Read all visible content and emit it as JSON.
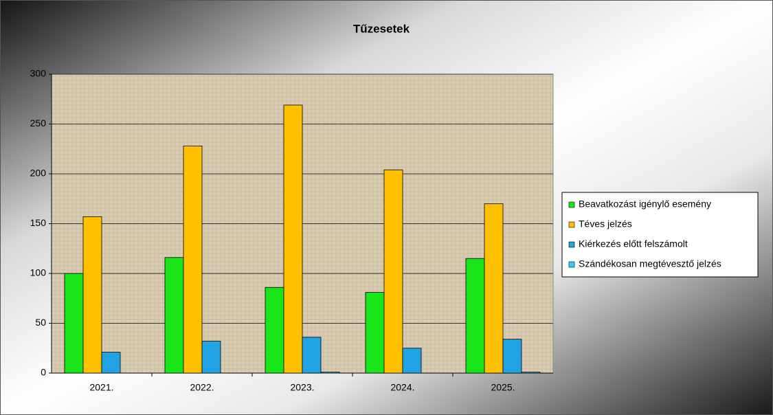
{
  "chart_data": {
    "type": "bar",
    "title": "Tűzesetek",
    "categories": [
      "2021.",
      "2022.",
      "2023.",
      "2024.",
      "2025."
    ],
    "series": [
      {
        "name": "Beavatkozást igénylő esemény",
        "color": "#19e619",
        "values": [
          100,
          116,
          86,
          81,
          115
        ]
      },
      {
        "name": "Téves jelzés",
        "color": "#ffc000",
        "values": [
          157,
          228,
          269,
          204,
          170
        ]
      },
      {
        "name": "Kiérkezés előtt felszámolt",
        "color": "#22a4e4",
        "values": [
          21,
          32,
          36,
          25,
          34
        ]
      },
      {
        "name": "Szándékosan megtévesztő jelzés",
        "color": "#33ccff",
        "values": [
          0,
          0,
          1,
          0,
          1
        ]
      }
    ],
    "ylim": [
      0,
      300
    ],
    "yticks": [
      0,
      50,
      100,
      150,
      200,
      250,
      300
    ],
    "grid": true,
    "legend": "right"
  }
}
